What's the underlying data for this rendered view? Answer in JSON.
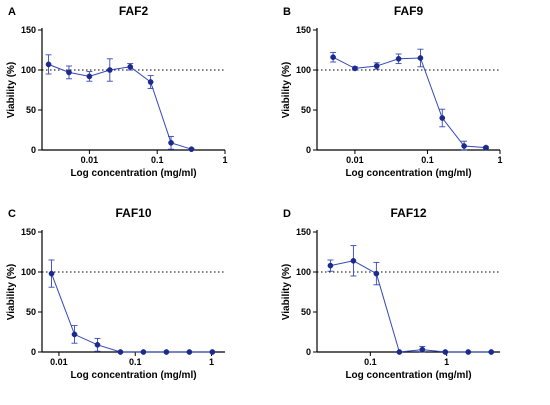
{
  "colors": {
    "series": "#3347b8",
    "marker": "#1c2a8c",
    "axis": "#000000"
  },
  "chart_data": [
    {
      "panel": "A",
      "title": "FAF2",
      "type": "line",
      "xlabel": "Log concentration (mg/ml)",
      "ylabel": "Viability (%)",
      "xscale": "log",
      "xlim": [
        0.002,
        1
      ],
      "ylim": [
        0,
        150
      ],
      "xticks": [
        {
          "value": 0.01,
          "label": "0.01"
        },
        {
          "value": 0.1,
          "label": "0.1"
        },
        {
          "value": 1,
          "label": "1"
        }
      ],
      "yticks": [
        {
          "value": 0,
          "label": "0"
        },
        {
          "value": 50,
          "label": "50"
        },
        {
          "value": 100,
          "label": "100"
        },
        {
          "value": 150,
          "label": "150"
        }
      ],
      "reference_line": 100,
      "points": [
        {
          "x": 0.0025,
          "y": 107,
          "err": 12
        },
        {
          "x": 0.005,
          "y": 97,
          "err": 8
        },
        {
          "x": 0.01,
          "y": 92,
          "err": 6
        },
        {
          "x": 0.02,
          "y": 100,
          "err": 14
        },
        {
          "x": 0.04,
          "y": 104,
          "err": 4
        },
        {
          "x": 0.08,
          "y": 85,
          "err": 8
        },
        {
          "x": 0.16,
          "y": 9,
          "err": 8
        },
        {
          "x": 0.32,
          "y": 1,
          "err": 1
        }
      ]
    },
    {
      "panel": "B",
      "title": "FAF9",
      "type": "line",
      "xlabel": "Log concentration (mg/ml)",
      "ylabel": "Viability (%)",
      "xscale": "log",
      "xlim": [
        0.003,
        1
      ],
      "ylim": [
        0,
        150
      ],
      "xticks": [
        {
          "value": 0.01,
          "label": "0.01"
        },
        {
          "value": 0.1,
          "label": "0.1"
        },
        {
          "value": 1,
          "label": "1"
        }
      ],
      "yticks": [
        {
          "value": 0,
          "label": "0"
        },
        {
          "value": 50,
          "label": "50"
        },
        {
          "value": 100,
          "label": "100"
        },
        {
          "value": 150,
          "label": "150"
        }
      ],
      "reference_line": 100,
      "points": [
        {
          "x": 0.005,
          "y": 116,
          "err": 6
        },
        {
          "x": 0.01,
          "y": 102,
          "err": 2
        },
        {
          "x": 0.02,
          "y": 105,
          "err": 4
        },
        {
          "x": 0.04,
          "y": 114,
          "err": 6
        },
        {
          "x": 0.08,
          "y": 115,
          "err": 11
        },
        {
          "x": 0.16,
          "y": 40,
          "err": 11
        },
        {
          "x": 0.32,
          "y": 5,
          "err": 6
        },
        {
          "x": 0.64,
          "y": 3,
          "err": 1
        }
      ]
    },
    {
      "panel": "C",
      "title": "FAF10",
      "type": "line",
      "xlabel": "Log concentration (mg/ml)",
      "ylabel": "Viability (%)",
      "xscale": "log",
      "xlim": [
        0.006,
        1.5
      ],
      "ylim": [
        0,
        150
      ],
      "xticks": [
        {
          "value": 0.01,
          "label": "0.01"
        },
        {
          "value": 0.1,
          "label": "0.1"
        },
        {
          "value": 1,
          "label": "1"
        }
      ],
      "yticks": [
        {
          "value": 0,
          "label": "0"
        },
        {
          "value": 50,
          "label": "50"
        },
        {
          "value": 100,
          "label": "100"
        },
        {
          "value": 150,
          "label": "150"
        }
      ],
      "reference_line": 100,
      "points": [
        {
          "x": 0.008,
          "y": 98,
          "err": 17
        },
        {
          "x": 0.016,
          "y": 22,
          "err": 11
        },
        {
          "x": 0.032,
          "y": 9,
          "err": 8
        },
        {
          "x": 0.064,
          "y": 0,
          "err": 0
        },
        {
          "x": 0.128,
          "y": 0,
          "err": 0
        },
        {
          "x": 0.256,
          "y": 0,
          "err": 0
        },
        {
          "x": 0.512,
          "y": 0,
          "err": 0
        },
        {
          "x": 1.024,
          "y": 0,
          "err": 0
        }
      ]
    },
    {
      "panel": "D",
      "title": "FAF12",
      "type": "line",
      "xlabel": "Log concentration (mg/ml)",
      "ylabel": "Viability (%)",
      "xscale": "log",
      "xlim": [
        0.02,
        5
      ],
      "ylim": [
        0,
        150
      ],
      "xticks": [
        {
          "value": 0.1,
          "label": "0.1"
        },
        {
          "value": 1,
          "label": "1"
        }
      ],
      "yticks": [
        {
          "value": 0,
          "label": "0"
        },
        {
          "value": 50,
          "label": "50"
        },
        {
          "value": 100,
          "label": "100"
        },
        {
          "value": 150,
          "label": "150"
        }
      ],
      "reference_line": 100,
      "points": [
        {
          "x": 0.03,
          "y": 108,
          "err": 7
        },
        {
          "x": 0.06,
          "y": 114,
          "err": 19
        },
        {
          "x": 0.12,
          "y": 98,
          "err": 14
        },
        {
          "x": 0.24,
          "y": 0,
          "err": 0
        },
        {
          "x": 0.48,
          "y": 3,
          "err": 4
        },
        {
          "x": 0.96,
          "y": 0,
          "err": 0
        },
        {
          "x": 1.92,
          "y": 0,
          "err": 0
        },
        {
          "x": 3.84,
          "y": 0,
          "err": 0
        }
      ]
    }
  ]
}
